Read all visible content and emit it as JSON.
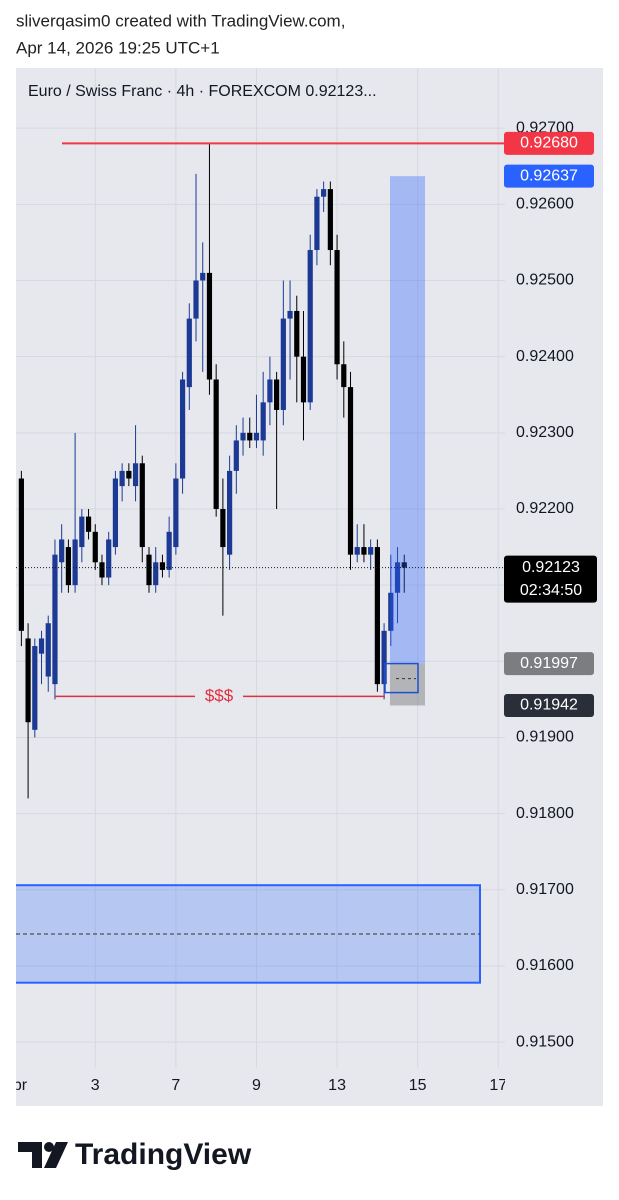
{
  "header": {
    "line1": "sliverqasim0 created with TradingView.com,",
    "line2": "Apr 14, 2026 19:25 UTC+1"
  },
  "chart_data": {
    "type": "candlestick",
    "title": "Euro / Swiss Franc · 4h · FOREXCOM  0.92123...",
    "up_color": "#1c3a94",
    "down_color": "#000000",
    "x": [
      1,
      2,
      3,
      4,
      5,
      6,
      7,
      8,
      9,
      10,
      11,
      12,
      13,
      14,
      15,
      16,
      17,
      18,
      19,
      20,
      21,
      22,
      23,
      24,
      25,
      26,
      27,
      28,
      29,
      30,
      31,
      32,
      33,
      34,
      35,
      36,
      37,
      38,
      39,
      40,
      41,
      42,
      43,
      44,
      45,
      46,
      47,
      48,
      49,
      50,
      51,
      52,
      53,
      54,
      55,
      56,
      57,
      58
    ],
    "open": [
      0.9224,
      0.9203,
      0.9191,
      0.9201,
      0.9198,
      0.9197,
      0.9213,
      0.9215,
      0.921,
      0.9215,
      0.9219,
      0.9217,
      0.9213,
      0.9211,
      0.9215,
      0.9223,
      0.9225,
      0.9223,
      0.9226,
      0.9214,
      0.921,
      0.9213,
      0.9212,
      0.9215,
      0.9224,
      0.9236,
      0.9245,
      0.925,
      0.9251,
      0.9237,
      0.922,
      0.9214,
      0.9225,
      0.9229,
      0.923,
      0.9229,
      0.9229,
      0.9234,
      0.9237,
      0.9233,
      0.9245,
      0.9246,
      0.924,
      0.9234,
      0.9254,
      0.9261,
      0.9262,
      0.9254,
      0.9239,
      0.9236,
      0.9214,
      0.9215,
      0.9214,
      0.9215,
      0.9197,
      0.9204,
      0.9209,
      0.9213
    ],
    "high": [
      0.9225,
      0.9205,
      0.9203,
      0.9204,
      0.9206,
      0.9216,
      0.9218,
      0.9216,
      0.923,
      0.922,
      0.922,
      0.9218,
      0.9214,
      0.9217,
      0.9225,
      0.9226,
      0.9226,
      0.9231,
      0.9227,
      0.9215,
      0.9215,
      0.9214,
      0.9219,
      0.9226,
      0.9238,
      0.9247,
      0.9264,
      0.9255,
      0.9268,
      0.9239,
      0.9224,
      0.9227,
      0.9231,
      0.9232,
      0.9232,
      0.9235,
      0.9238,
      0.924,
      0.9238,
      0.925,
      0.925,
      0.9248,
      0.9246,
      0.9256,
      0.9262,
      0.9263,
      0.9263,
      0.9256,
      0.9242,
      0.9238,
      0.9218,
      0.9218,
      0.9216,
      0.9216,
      0.9205,
      0.9214,
      0.9215,
      0.9214
    ],
    "low": [
      0.9202,
      0.9182,
      0.919,
      0.9197,
      0.9196,
      0.9195,
      0.9209,
      0.9209,
      0.9209,
      0.9213,
      0.9216,
      0.9212,
      0.921,
      0.921,
      0.9214,
      0.9221,
      0.9223,
      0.9221,
      0.9213,
      0.9209,
      0.9209,
      0.9211,
      0.9211,
      0.9214,
      0.9222,
      0.9233,
      0.9242,
      0.9238,
      0.9235,
      0.9219,
      0.9206,
      0.9212,
      0.9222,
      0.9227,
      0.9228,
      0.9228,
      0.9227,
      0.9231,
      0.922,
      0.9231,
      0.9237,
      0.9234,
      0.9229,
      0.9233,
      0.9252,
      0.9259,
      0.9252,
      0.9237,
      0.9232,
      0.9212,
      0.9213,
      0.9213,
      0.9212,
      0.9196,
      0.9195,
      0.9202,
      0.9205,
      0.9209
    ],
    "close": [
      0.9204,
      0.9192,
      0.9202,
      0.9203,
      0.9205,
      0.9214,
      0.9216,
      0.921,
      0.9216,
      0.9219,
      0.9217,
      0.9213,
      0.9211,
      0.9216,
      0.9224,
      0.9225,
      0.9224,
      0.9226,
      0.9215,
      0.921,
      0.9213,
      0.9212,
      0.9217,
      0.9224,
      0.9237,
      0.9245,
      0.925,
      0.9251,
      0.9237,
      0.922,
      0.9215,
      0.9225,
      0.9229,
      0.923,
      0.9229,
      0.923,
      0.9234,
      0.9237,
      0.9233,
      0.9245,
      0.9246,
      0.924,
      0.9234,
      0.9254,
      0.9261,
      0.9262,
      0.9254,
      0.9239,
      0.9236,
      0.9214,
      0.9215,
      0.9214,
      0.9215,
      0.9197,
      0.9204,
      0.9209,
      0.9213,
      0.92123
    ],
    "xlim": [
      0.2,
      73
    ],
    "xticks": [
      {
        "value": 0,
        "label": "Apr"
      },
      {
        "value": 12,
        "label": "3"
      },
      {
        "value": 24,
        "label": "7"
      },
      {
        "value": 36,
        "label": "9"
      },
      {
        "value": 48,
        "label": "13"
      },
      {
        "value": 60,
        "label": "15"
      },
      {
        "value": 72,
        "label": "17"
      }
    ],
    "ylim": [
      0.91466,
      0.92779
    ],
    "yticks": [
      {
        "value": 0.927,
        "label": "0.92700"
      },
      {
        "value": 0.926,
        "label": "0.92600"
      },
      {
        "value": 0.925,
        "label": "0.92500"
      },
      {
        "value": 0.924,
        "label": "0.92400"
      },
      {
        "value": 0.923,
        "label": "0.92300"
      },
      {
        "value": 0.922,
        "label": "0.92200"
      },
      {
        "value": 0.921,
        "label": "0.92100"
      },
      {
        "value": 0.92,
        "label": "0.92000"
      },
      {
        "value": 0.919,
        "label": "0.91900"
      },
      {
        "value": 0.918,
        "label": "0.91800"
      },
      {
        "value": 0.917,
        "label": "0.91700"
      },
      {
        "value": 0.916,
        "label": "0.91600"
      },
      {
        "value": 0.915,
        "label": "0.91500"
      }
    ],
    "grid": true,
    "resistance": {
      "value": 0.9268,
      "label": "0.92680",
      "color": "#f23645"
    },
    "liquidity": {
      "value": 0.91954,
      "label": "$$$",
      "color": "#e0303c"
    },
    "position": {
      "target": {
        "value": 0.92637,
        "label": "0.92637"
      },
      "entry": {
        "value": 0.91997,
        "label": "0.91997"
      },
      "stop": {
        "value": 0.91942,
        "label": "0.91942"
      },
      "color": "#2962ff"
    },
    "current": {
      "value": 0.92123,
      "label": "0.92123",
      "countdown": "02:34:50"
    },
    "zone": {
      "top": 0.91706,
      "bottom": 0.91578,
      "mid": 0.91642,
      "color": "#2962ff"
    }
  },
  "footer": {
    "brand": "TradingView"
  }
}
